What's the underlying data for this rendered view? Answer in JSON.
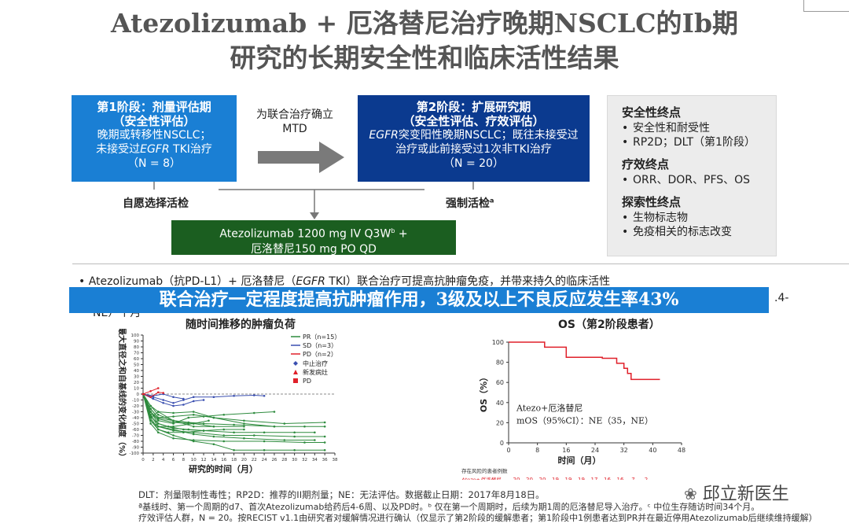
{
  "title": {
    "line1": "Atezolizumab + 厄洛替尼治疗晚期NSCLC的Ib期",
    "line2": "研究的长期安全性和临床活性结果"
  },
  "stage1": {
    "header": "第1阶段：剂量评估期",
    "sub": "（安全性评估）",
    "line1": "晚期或转移性NSCLC；",
    "line2a": "未接受过",
    "line2b": "EGFR",
    "line2c": " TKI治疗",
    "n": "（N = 8）"
  },
  "mtd": {
    "line1": "为联合治疗确立",
    "line2": "MTD"
  },
  "stage2": {
    "header": "第2阶段：扩展研究期",
    "sub": "（安全性评估、疗效评估）",
    "line1a": "EGFR",
    "line1b": "突变阳性晚期NSCLC；既往未接受过",
    "line2": "治疗或此前接受过1次非TKI治疗",
    "n": "（N = 20）"
  },
  "labels": {
    "biopsy1": "自愿选择活检",
    "biopsy2": "强制活检",
    "biopsy2_sup": "a"
  },
  "drug": {
    "line1": "Atezolizumab 1200 mg IV Q3W",
    "line1_sup": "b",
    "line1_tail": " +",
    "line2": "厄洛替尼150 mg PO QD"
  },
  "endpoints": {
    "safety_h": "安全性终点",
    "safety": [
      "安全性和耐受性",
      "RP2D；DLT（第1阶段）"
    ],
    "efficacy_h": "疗效终点",
    "efficacy": [
      "ORR、DOR、PFS、OS"
    ],
    "explore_h": "探索性终点",
    "explore": [
      "生物标志物",
      "免疫相关的标志改变"
    ]
  },
  "bullet": {
    "text1": "Atezolizumab（抗PD-L1）+ 厄洛替尼（",
    "egfr": "EGFR",
    "text2": " TKI）联合治疗可提高抗肿瘤免疫，并带来持久的临床活性",
    "tail": "NE）个月",
    "right_tail": ".4-"
  },
  "banner": "联合治疗一定程度提高抗肿瘤作用，3级及以上不良反应发生率43%",
  "chart_data": [
    {
      "type": "line",
      "title": "随时间推移的肿瘤负荷",
      "xlabel": "研究的时间（月）",
      "ylabel": "最大直径之和自基线的变化幅度（%）",
      "xlim": [
        0,
        38
      ],
      "ylim": [
        -100,
        100
      ],
      "xticks": [
        0,
        2,
        4,
        6,
        8,
        10,
        12,
        14,
        16,
        18,
        20,
        22,
        24,
        26,
        28,
        30,
        32,
        34,
        36,
        38
      ],
      "yticks": [
        100,
        90,
        80,
        70,
        60,
        50,
        40,
        30,
        20,
        10,
        0,
        -10,
        -20,
        -30,
        -40,
        -50,
        -60,
        -70,
        -80,
        -90,
        -100
      ],
      "legend": [
        "PR（n=15）",
        "SD（n=3）",
        "PD（n=2）",
        "中止治疗",
        "新发病灶",
        "PD"
      ],
      "series": [
        {
          "name": "PR",
          "color": "#2e8b3e",
          "lines": [
            [
              [
                0,
                0
              ],
              [
                1.5,
                -25
              ],
              [
                3,
                -40
              ],
              [
                6,
                -45
              ],
              [
                10,
                -50
              ],
              [
                14,
                -55
              ],
              [
                20,
                -55
              ]
            ],
            [
              [
                0,
                0
              ],
              [
                1.5,
                -35
              ],
              [
                3,
                -55
              ],
              [
                6,
                -62
              ],
              [
                10,
                -65
              ],
              [
                16,
                -70
              ],
              [
                22,
                -70
              ],
              [
                30,
                -72
              ],
              [
                36,
                -72
              ]
            ],
            [
              [
                0,
                0
              ],
              [
                1.5,
                -40
              ],
              [
                3,
                -60
              ],
              [
                6,
                -70
              ],
              [
                10,
                -80
              ],
              [
                14,
                -85
              ],
              [
                18,
                -95
              ],
              [
                24,
                -95
              ],
              [
                30,
                -95
              ],
              [
                36,
                -95
              ]
            ],
            [
              [
                0,
                0
              ],
              [
                1.5,
                -30
              ],
              [
                3,
                -50
              ],
              [
                5,
                -55
              ],
              [
                8,
                -60
              ],
              [
                12,
                -62
              ],
              [
                18,
                -65
              ],
              [
                24,
                -65
              ],
              [
                30,
                -65
              ],
              [
                34,
                -65
              ]
            ],
            [
              [
                0,
                0
              ],
              [
                1.5,
                -20
              ],
              [
                3,
                -35
              ],
              [
                6,
                -45
              ],
              [
                9,
                -48
              ],
              [
                12,
                -50
              ],
              [
                18,
                -52
              ],
              [
                26,
                -55
              ],
              [
                32,
                -55
              ],
              [
                36,
                -55
              ]
            ],
            [
              [
                0,
                0
              ],
              [
                1.5,
                -45
              ],
              [
                3,
                -60
              ],
              [
                5,
                -65
              ],
              [
                8,
                -65
              ],
              [
                12,
                -62
              ]
            ],
            [
              [
                0,
                0
              ],
              [
                1.5,
                -25
              ],
              [
                3,
                -40
              ],
              [
                6,
                -38
              ],
              [
                10,
                -35
              ],
              [
                14,
                -40
              ],
              [
                20,
                -45
              ],
              [
                28,
                -50
              ],
              [
                36,
                -48
              ]
            ],
            [
              [
                0,
                0
              ],
              [
                1.5,
                -30
              ],
              [
                3,
                -45
              ],
              [
                6,
                -50
              ],
              [
                9,
                -40
              ],
              [
                12,
                -38
              ],
              [
                16,
                -35
              ],
              [
                22,
                -32
              ],
              [
                26,
                -30
              ]
            ],
            [
              [
                0,
                0
              ],
              [
                1.5,
                -50
              ],
              [
                3,
                -65
              ],
              [
                6,
                -75
              ],
              [
                10,
                -78
              ],
              [
                16,
                -80
              ],
              [
                24,
                -80
              ],
              [
                32,
                -82
              ],
              [
                36,
                -82
              ]
            ],
            [
              [
                0,
                0
              ],
              [
                1.5,
                -35
              ],
              [
                3,
                -55
              ],
              [
                6,
                -60
              ],
              [
                10,
                -68
              ],
              [
                14,
                -72
              ],
              [
                20,
                -75
              ],
              [
                28,
                -78
              ],
              [
                34,
                -78
              ]
            ],
            [
              [
                0,
                0
              ],
              [
                1.5,
                -40
              ],
              [
                3,
                -30
              ],
              [
                6,
                -32
              ],
              [
                10,
                -30
              ],
              [
                14,
                -40
              ],
              [
                20,
                -50
              ],
              [
                26,
                -55
              ]
            ],
            [
              [
                0,
                0
              ],
              [
                1.5,
                -20
              ],
              [
                3,
                -30
              ],
              [
                6,
                -45
              ],
              [
                10,
                -55
              ],
              [
                14,
                -55
              ]
            ],
            [
              [
                0,
                0
              ],
              [
                1.5,
                -45
              ],
              [
                3,
                -55
              ],
              [
                6,
                -55
              ],
              [
                10,
                -50
              ],
              [
                13,
                -45
              ]
            ],
            [
              [
                0,
                0
              ],
              [
                1.5,
                -30
              ],
              [
                3,
                -42
              ],
              [
                6,
                -48
              ],
              [
                9,
                -50
              ]
            ],
            [
              [
                0,
                0
              ],
              [
                1.5,
                -38
              ],
              [
                3,
                -50
              ],
              [
                6,
                -58
              ],
              [
                9,
                -60
              ],
              [
                12,
                -62
              ],
              [
                16,
                -60
              ],
              [
                20,
                -60
              ]
            ]
          ]
        },
        {
          "name": "SD",
          "color": "#3a4fb0",
          "lines": [
            [
              [
                0,
                0
              ],
              [
                2,
                -5
              ],
              [
                4,
                -10
              ],
              [
                6,
                -15
              ],
              [
                8,
                -10
              ],
              [
                10,
                -5
              ],
              [
                14,
                -5
              ],
              [
                18,
                -3
              ],
              [
                22,
                -2
              ],
              [
                24,
                -3
              ]
            ],
            [
              [
                0,
                0
              ],
              [
                2,
                -8
              ],
              [
                4,
                -15
              ],
              [
                6,
                -20
              ],
              [
                8,
                -18
              ],
              [
                10,
                -12
              ],
              [
                12,
                -10
              ]
            ],
            [
              [
                0,
                0
              ],
              [
                2,
                -3
              ],
              [
                4,
                0
              ],
              [
                6,
                -5
              ],
              [
                8,
                -8
              ]
            ]
          ]
        },
        {
          "name": "PD",
          "color": "#e0202a",
          "lines": [
            [
              [
                0,
                0
              ],
              [
                1.5,
                5
              ],
              [
                3,
                10
              ]
            ],
            [
              [
                0,
                0
              ],
              [
                1.5,
                -5
              ],
              [
                3,
                3
              ],
              [
                4,
                2
              ]
            ]
          ]
        }
      ]
    },
    {
      "type": "line",
      "title": "OS（第2阶段患者）",
      "xlabel": "时间（月）",
      "ylabel": "OS（%）",
      "xlim": [
        0,
        48
      ],
      "ylim": [
        0,
        100
      ],
      "xticks": [
        0,
        8,
        16,
        24,
        32,
        40,
        48
      ],
      "yticks": [
        0,
        20,
        40,
        60,
        80,
        100
      ],
      "series": [
        {
          "name": "Atezo+厄洛替尼",
          "color": "#e0202a",
          "x": [
            0,
            10,
            10,
            16,
            16,
            26,
            26,
            30,
            30,
            32,
            32,
            33,
            33,
            34,
            34,
            38,
            38,
            40,
            40,
            42
          ],
          "y": [
            100,
            100,
            95,
            95,
            85,
            85,
            84,
            84,
            79,
            79,
            74,
            74,
            69,
            69,
            63,
            63,
            63,
            63,
            63,
            63
          ]
        }
      ],
      "annotation": {
        "line1": "Atezo+厄洛替尼",
        "line2": "mOS（95%CI）：NE（35，NE）"
      },
      "risk_label": "存在风险的患者例数",
      "risk_row_label": "Atezo+厄洛替尼",
      "risk_counts": [
        "20",
        "20",
        "20",
        "19",
        "19",
        "19",
        "17",
        "16",
        "16",
        "7",
        "2"
      ]
    }
  ],
  "footnotes": {
    "line1": "DLT：剂量限制性毒性；RP2D：推荐的II期剂量；NE：无法评估。数据截止日期：2017年8月18日。",
    "line2": "ª基线时、第一个周期的d7、首次Atezolizumab给药后4-6周、以及PD时。ᵇ 仅在第一个周期时，后续为期1周的厄洛替尼导入治疗。ᶜ 中位生存随访时间34个月。",
    "line3": "疗效评估人群，N = 20。按RECIST v1.1由研究者对缓解情况进行确认（仅显示了第2阶段的缓解患者；第1阶段中1例患者达到PR并在最近停用Atezolizumab后继续维持缓解）"
  },
  "watermark": "邱立新医生"
}
